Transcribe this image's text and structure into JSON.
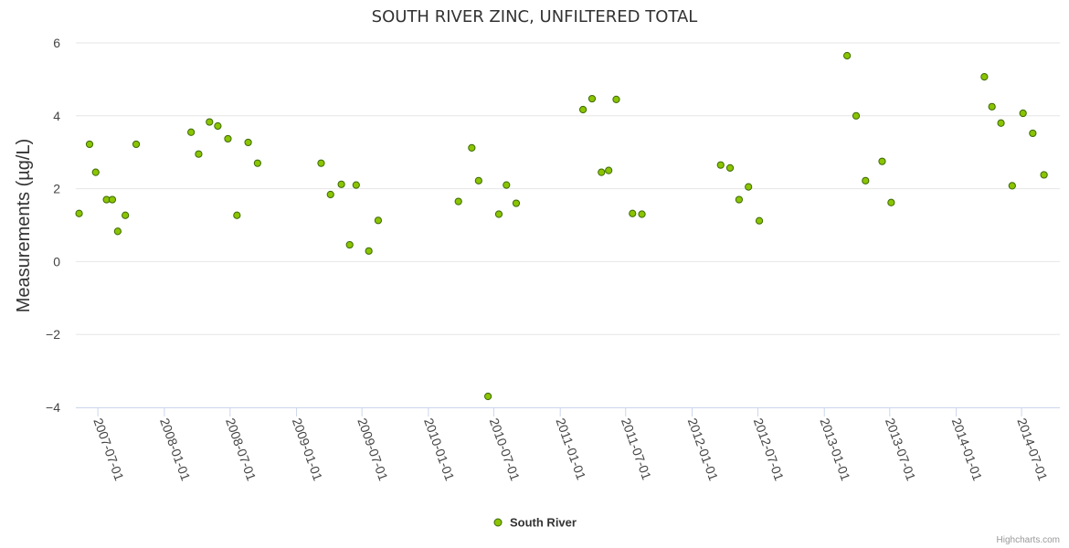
{
  "chart_data": {
    "type": "scatter",
    "title": "SOUTH RIVER ZINC, UNFILTERED TOTAL",
    "xlabel": "",
    "ylabel": "Measurements (µg/L)",
    "ylim": [
      -4,
      6
    ],
    "yticks": [
      "−4",
      "−2",
      "0",
      "2",
      "4",
      "6"
    ],
    "ytick_values": [
      -4,
      -2,
      0,
      2,
      4,
      6
    ],
    "xlim": [
      "2007-05-01",
      "2014-10-15"
    ],
    "xticks": [
      "2007-07-01",
      "2008-01-01",
      "2008-07-01",
      "2009-01-01",
      "2009-07-01",
      "2010-01-01",
      "2010-07-01",
      "2011-01-01",
      "2011-07-01",
      "2012-01-01",
      "2012-07-01",
      "2013-01-01",
      "2013-07-01",
      "2014-01-01",
      "2014-07-01"
    ],
    "grid": true,
    "legend_position": "bottom-center",
    "series": [
      {
        "name": "South River",
        "color": "#8bc400",
        "stroke": "#3a6a00",
        "points": [
          {
            "x": "2007-05-10",
            "y": 1.32
          },
          {
            "x": "2007-06-08",
            "y": 3.22
          },
          {
            "x": "2007-06-25",
            "y": 2.45
          },
          {
            "x": "2007-07-25",
            "y": 1.7
          },
          {
            "x": "2007-08-10",
            "y": 1.7
          },
          {
            "x": "2007-08-25",
            "y": 0.83
          },
          {
            "x": "2007-09-15",
            "y": 1.27
          },
          {
            "x": "2007-10-15",
            "y": 3.22
          },
          {
            "x": "2008-03-15",
            "y": 3.55
          },
          {
            "x": "2008-04-05",
            "y": 2.95
          },
          {
            "x": "2008-05-05",
            "y": 3.83
          },
          {
            "x": "2008-05-28",
            "y": 3.72
          },
          {
            "x": "2008-06-25",
            "y": 3.37
          },
          {
            "x": "2008-07-20",
            "y": 1.27
          },
          {
            "x": "2008-08-20",
            "y": 3.27
          },
          {
            "x": "2008-09-15",
            "y": 2.7
          },
          {
            "x": "2009-03-10",
            "y": 2.7
          },
          {
            "x": "2009-04-05",
            "y": 1.84
          },
          {
            "x": "2009-05-05",
            "y": 2.12
          },
          {
            "x": "2009-05-28",
            "y": 0.46
          },
          {
            "x": "2009-06-15",
            "y": 2.1
          },
          {
            "x": "2009-07-20",
            "y": 0.29
          },
          {
            "x": "2009-08-15",
            "y": 1.13
          },
          {
            "x": "2010-03-25",
            "y": 1.65
          },
          {
            "x": "2010-05-01",
            "y": 3.12
          },
          {
            "x": "2010-05-20",
            "y": 2.22
          },
          {
            "x": "2010-06-15",
            "y": -3.7
          },
          {
            "x": "2010-07-15",
            "y": 1.3
          },
          {
            "x": "2010-08-05",
            "y": 2.1
          },
          {
            "x": "2010-09-01",
            "y": 1.6
          },
          {
            "x": "2011-03-05",
            "y": 4.17
          },
          {
            "x": "2011-03-30",
            "y": 4.47
          },
          {
            "x": "2011-04-25",
            "y": 2.45
          },
          {
            "x": "2011-05-15",
            "y": 2.5
          },
          {
            "x": "2011-06-05",
            "y": 4.45
          },
          {
            "x": "2011-07-20",
            "y": 1.32
          },
          {
            "x": "2011-08-15",
            "y": 1.3
          },
          {
            "x": "2012-03-20",
            "y": 2.65
          },
          {
            "x": "2012-04-15",
            "y": 2.57
          },
          {
            "x": "2012-05-10",
            "y": 1.7
          },
          {
            "x": "2012-06-05",
            "y": 2.05
          },
          {
            "x": "2012-07-05",
            "y": 1.12
          },
          {
            "x": "2013-03-05",
            "y": 5.65
          },
          {
            "x": "2013-03-30",
            "y": 4.0
          },
          {
            "x": "2013-04-25",
            "y": 2.22
          },
          {
            "x": "2013-06-10",
            "y": 2.75
          },
          {
            "x": "2013-07-05",
            "y": 1.62
          },
          {
            "x": "2014-03-20",
            "y": 5.07
          },
          {
            "x": "2014-04-10",
            "y": 4.25
          },
          {
            "x": "2014-05-05",
            "y": 3.8
          },
          {
            "x": "2014-06-05",
            "y": 2.08
          },
          {
            "x": "2014-07-05",
            "y": 4.07
          },
          {
            "x": "2014-08-01",
            "y": 3.52
          },
          {
            "x": "2014-09-01",
            "y": 2.38
          }
        ]
      }
    ]
  },
  "legend": {
    "label": "South River"
  },
  "credits": "Highcharts.com"
}
